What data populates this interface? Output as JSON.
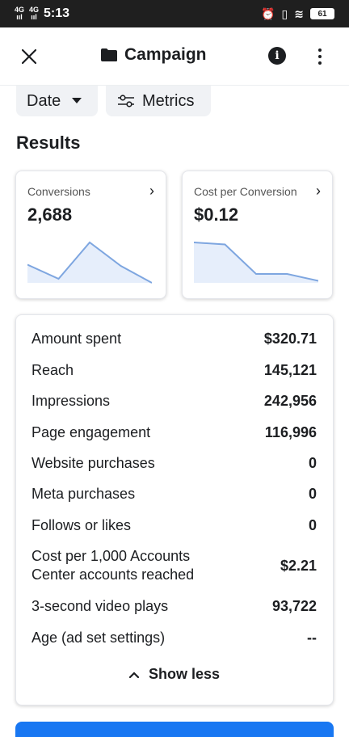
{
  "status_bar": {
    "time": "5:13",
    "net1": "4G",
    "net2": "4G",
    "battery": "61"
  },
  "header": {
    "title": "Campaign",
    "close_icon": "close-icon",
    "folder_icon": "folder-icon",
    "info_icon": "info-icon",
    "more_icon": "more-vertical-icon"
  },
  "filters": {
    "date_label": "Date",
    "metrics_label": "Metrics"
  },
  "results_title": "Results",
  "cards": [
    {
      "label": "Conversions",
      "value": "2,688",
      "trend": [
        0.45,
        0.1,
        1.0,
        0.42,
        0.0
      ]
    },
    {
      "label": "Cost per Conversion",
      "value": "$0.12",
      "trend": [
        1.0,
        0.95,
        0.22,
        0.22,
        0.05
      ]
    }
  ],
  "metrics": [
    {
      "label": "Amount spent",
      "value": "$320.71"
    },
    {
      "label": "Reach",
      "value": "145,121"
    },
    {
      "label": "Impressions",
      "value": "242,956"
    },
    {
      "label": "Page engagement",
      "value": "116,996"
    },
    {
      "label": "Website purchases",
      "value": "0"
    },
    {
      "label": "Meta purchases",
      "value": "0"
    },
    {
      "label": "Follows or likes",
      "value": "0"
    },
    {
      "label": "Cost per 1,000 Accounts Center accounts reached",
      "value": "$2.21"
    },
    {
      "label": "3-second video plays",
      "value": "93,722"
    },
    {
      "label": "Age (ad set settings)",
      "value": "--"
    }
  ],
  "show_less_label": "Show less",
  "colors": {
    "accent": "#1877f2",
    "spark_line": "#7ea6e0",
    "spark_fill": "#e6eefb"
  }
}
